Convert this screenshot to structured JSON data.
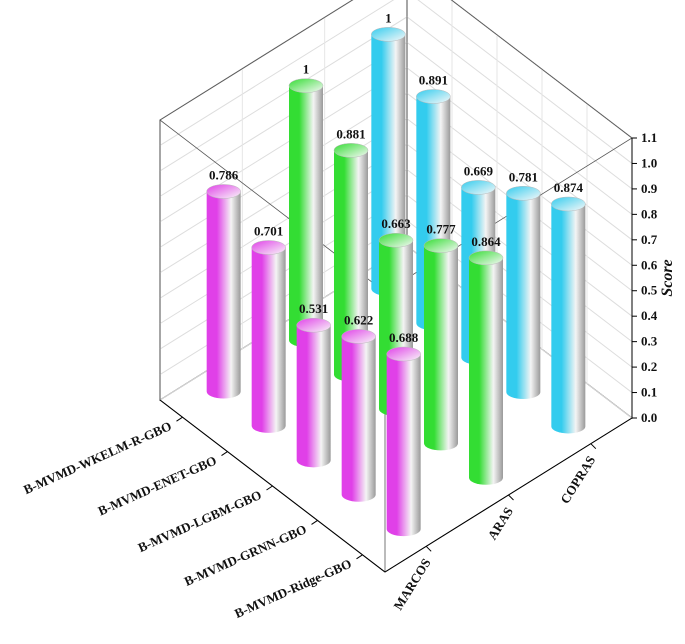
{
  "chart_data": {
    "type": "bar3d",
    "categories": [
      "B-MVMD-WKELM-R-GBO",
      "B-MVMD-ENET-GBO",
      "B-MVMD-LGBM-GBO",
      "B-MVMD-GRNN-GBO",
      "B-MVMD-Ridge-GBO"
    ],
    "series": [
      {
        "name": "MARCOS",
        "color": "#e040e8",
        "values": [
          0.786,
          0.701,
          0.531,
          0.622,
          0.688
        ]
      },
      {
        "name": "ARAS",
        "color": "#33dd33",
        "values": [
          1,
          0.881,
          0.663,
          0.777,
          0.864
        ]
      },
      {
        "name": "COPRAS",
        "color": "#33ccee",
        "values": [
          1,
          0.891,
          0.669,
          0.781,
          0.874
        ]
      }
    ],
    "zlabel": "Score",
    "zlim": [
      0,
      1.1
    ],
    "zticks": [
      {
        "value": 0,
        "label": "0.0"
      },
      0.1,
      0.2,
      0.3,
      0.4,
      0.5,
      0.6,
      0.7,
      0.8,
      0.9,
      {
        "value": 1,
        "label": "1.0"
      },
      1.1
    ],
    "grid": true
  }
}
